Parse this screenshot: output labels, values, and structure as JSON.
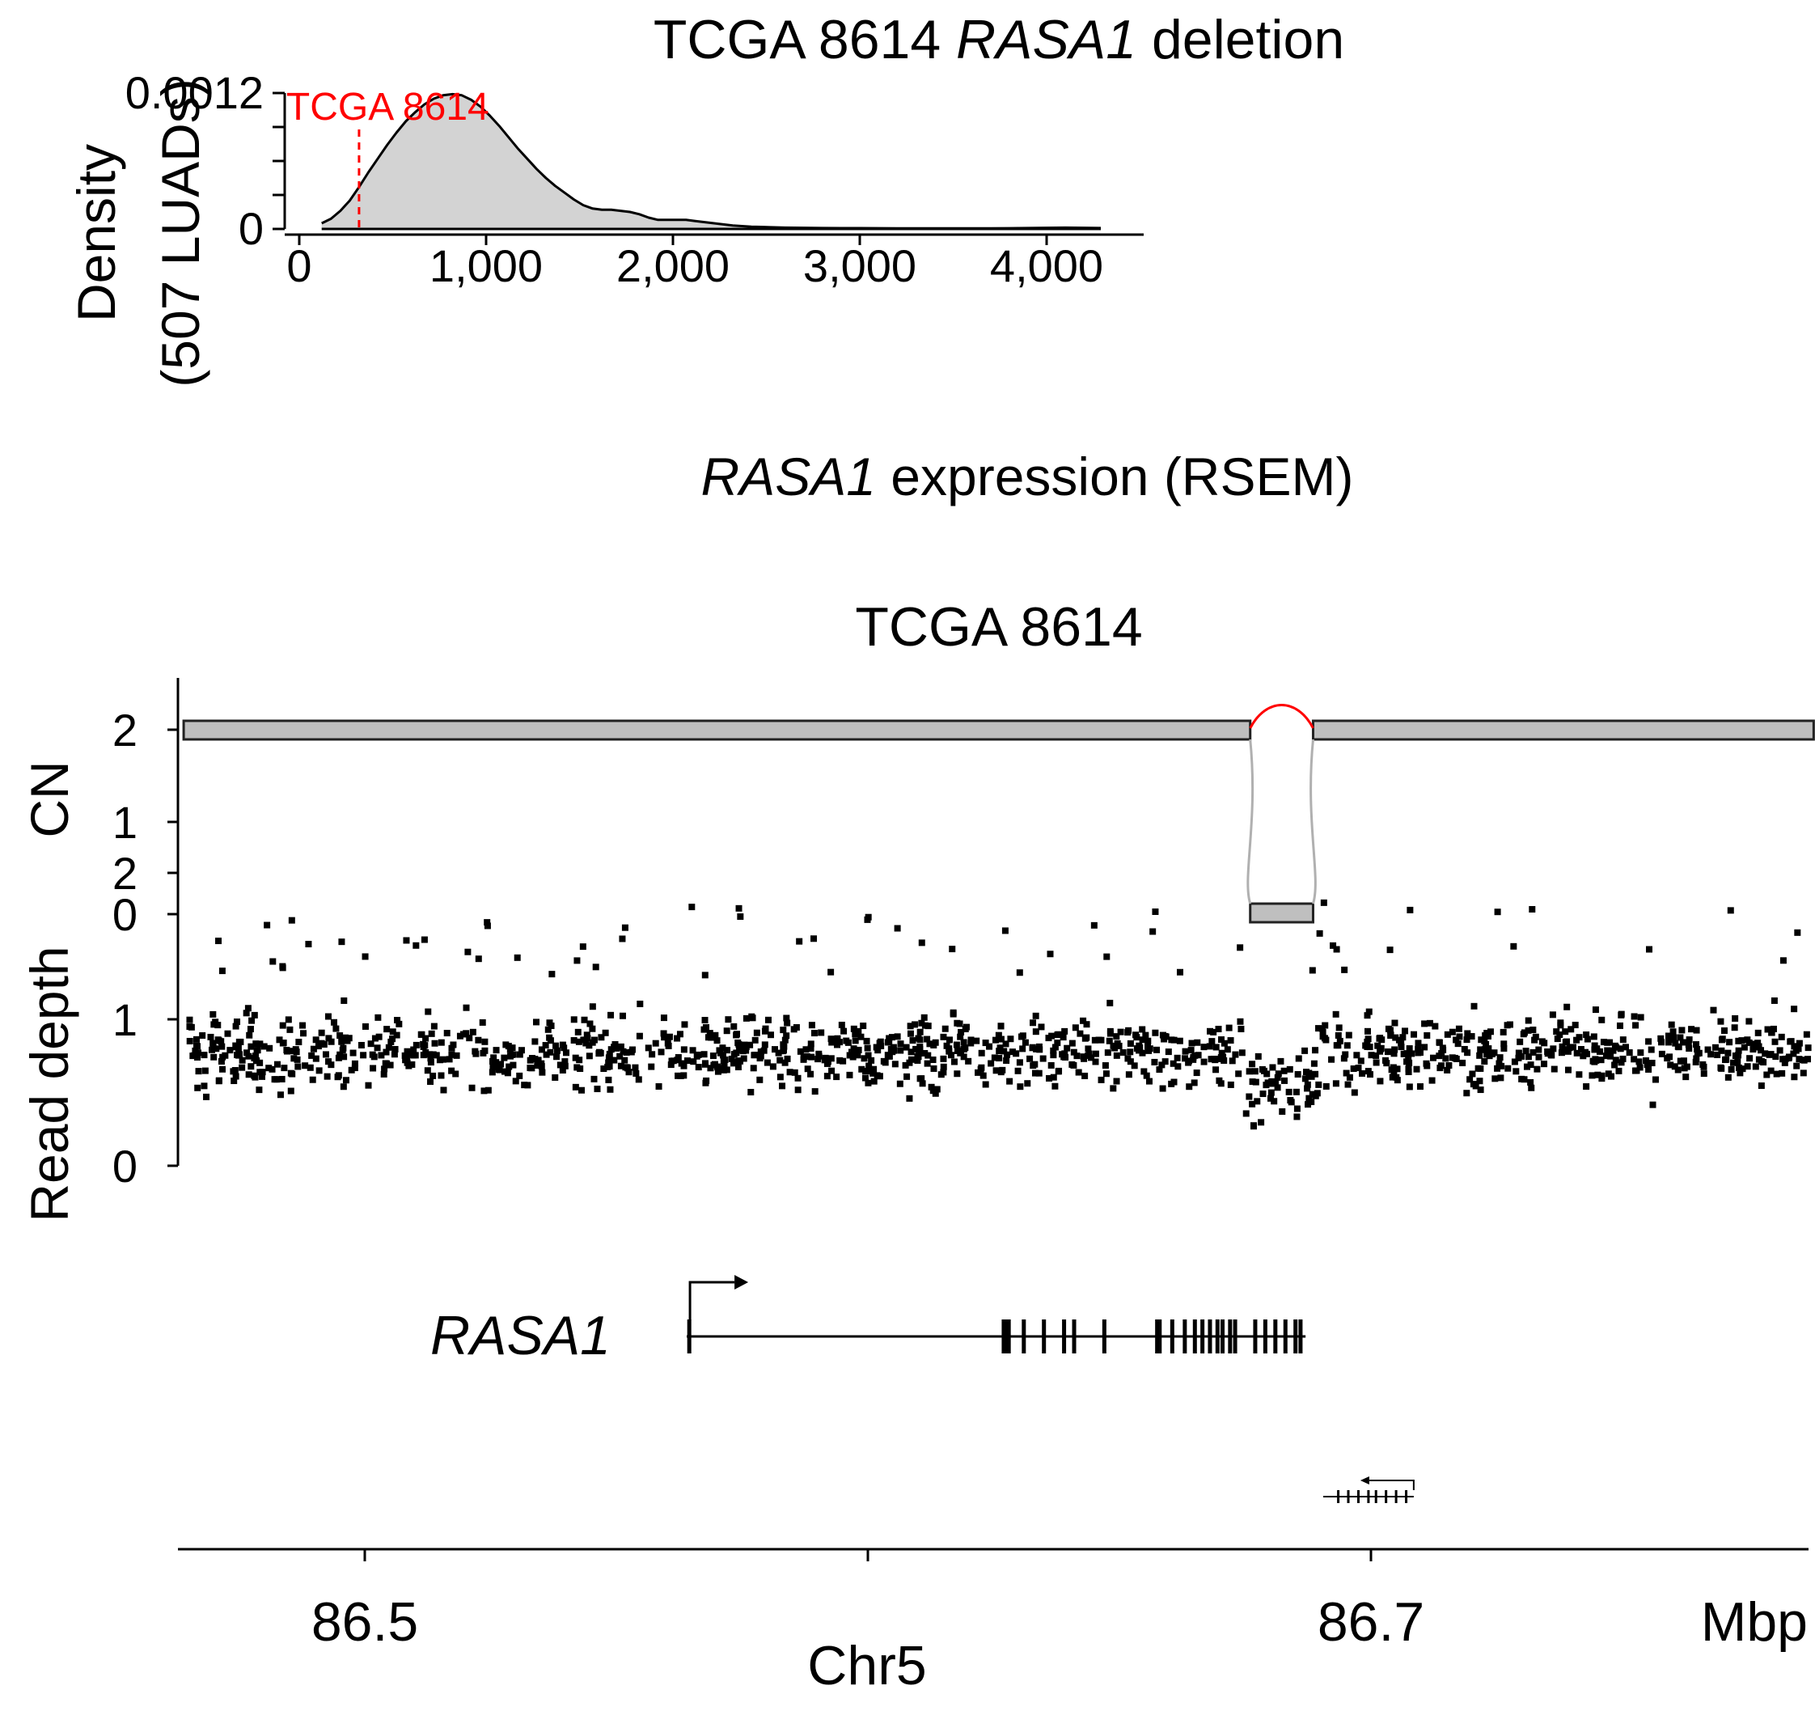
{
  "chart_data": [
    {
      "type": "area",
      "title_plain": "TCGA 8614 ",
      "title_italic": "RASA1",
      "title_rest": " deletion",
      "ylabel_line1": "Density",
      "ylabel_line2": "(507 LUADs)",
      "xlabel_italic": "RASA1",
      "xlabel_rest": " expression (RSEM)",
      "x_ticks": [
        0,
        1000,
        2000,
        3000,
        4000
      ],
      "x_tick_labels": [
        "0",
        "1,000",
        "2,000",
        "3,000",
        "4,000"
      ],
      "y_tick_labels": [
        "0",
        "0.0012"
      ],
      "xlim": [
        0,
        4500
      ],
      "ylim": [
        0,
        0.0012
      ],
      "fill_color": "#d3d3d3",
      "marker": {
        "label": "TCGA 8614",
        "x": 320,
        "color": "#ff0000",
        "style": "dashed"
      },
      "x": [
        120,
        170,
        220,
        270,
        320,
        370,
        420,
        470,
        520,
        570,
        620,
        670,
        720,
        770,
        820,
        870,
        920,
        970,
        1020,
        1070,
        1120,
        1170,
        1220,
        1270,
        1320,
        1370,
        1420,
        1470,
        1520,
        1570,
        1620,
        1670,
        1720,
        1770,
        1820,
        1870,
        1920,
        1970,
        2020,
        2070,
        2120,
        2170,
        2220,
        2270,
        2320,
        2370,
        2420,
        2470,
        2520,
        2600,
        2700,
        2800,
        2900,
        3000,
        3100,
        3200,
        3300,
        3400,
        3500,
        3600,
        3700,
        3800,
        3900,
        4000,
        4100,
        4200,
        4290
      ],
      "y": [
        5e-05,
        9e-05,
        0.00016,
        0.00025,
        0.00037,
        0.0005,
        0.00062,
        0.00074,
        0.00085,
        0.00095,
        0.00103,
        0.0011,
        0.00115,
        0.00118,
        0.00119,
        0.00118,
        0.00114,
        0.00108,
        0.001,
        0.00091,
        0.00081,
        0.00071,
        0.00062,
        0.00053,
        0.00045,
        0.00038,
        0.00032,
        0.00026,
        0.00021,
        0.00018,
        0.00017,
        0.00017,
        0.00016,
        0.00015,
        0.00013,
        0.0001,
        8e-05,
        8e-05,
        8e-05,
        8e-05,
        7e-05,
        6e-05,
        5e-05,
        4e-05,
        3e-05,
        2.5e-05,
        2e-05,
        1.8e-05,
        1.5e-05,
        1.2e-05,
        1e-05,
        8e-06,
        7e-06,
        7e-06,
        6e-06,
        5e-06,
        5e-06,
        5e-06,
        5e-06,
        5e-06,
        5e-06,
        6e-06,
        8e-06,
        1e-05,
        1.2e-05,
        1e-05,
        8e-06
      ]
    },
    {
      "type": "scatter",
      "title": "TCGA 8614",
      "cn_label": "CN",
      "cn_ticks": [
        0,
        1,
        2
      ],
      "cn_tick_labels": [
        "0",
        "1",
        "2"
      ],
      "cn_segments": [
        {
          "start": 86.464,
          "end": 86.676,
          "cn": 2
        },
        {
          "start": 86.676,
          "end": 86.6885,
          "cn": 0
        },
        {
          "start": 86.6885,
          "end": 86.788,
          "cn": 2
        }
      ],
      "rd_label": "Read depth",
      "rd_ticks": [
        0,
        1,
        2
      ],
      "rd_tick_labels": [
        "0",
        "1",
        "2"
      ],
      "rd_ylim": [
        0,
        2
      ],
      "rd_n_points": 1400,
      "deletion_region": [
        86.676,
        86.6885
      ],
      "genes": [
        {
          "name": "RASA1",
          "italic": true,
          "start": 86.564,
          "end": 86.687,
          "strand": "+",
          "exons": [
            86.5645,
            86.627,
            86.6275,
            86.628,
            86.631,
            86.635,
            86.639,
            86.641,
            86.647,
            86.6575,
            86.658,
            86.6605,
            86.663,
            86.665,
            86.6665,
            86.668,
            86.6695,
            86.6705,
            86.672,
            86.673,
            86.677,
            86.679,
            86.681,
            86.683,
            86.685,
            86.686
          ]
        },
        {
          "name": "",
          "italic": false,
          "start": 86.6905,
          "end": 86.7085,
          "strand": "-",
          "exons": [
            86.6935,
            86.6955,
            86.6975,
            86.6995,
            86.701,
            86.703,
            86.705,
            86.707
          ]
        }
      ],
      "x_ticks": [
        86.5,
        86.6,
        86.7
      ],
      "x_tick_labels": [
        "86.5",
        "",
        "86.7"
      ],
      "xlim": [
        86.464,
        86.788
      ],
      "x_unit": "Mbp",
      "xlabel": "Chr5"
    }
  ]
}
